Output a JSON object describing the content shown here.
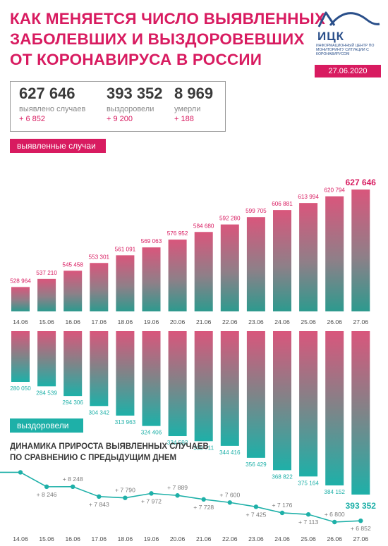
{
  "header": {
    "title_lines": [
      "КАК МЕНЯЕТСЯ ЧИСЛО ВЫЯВЛЕННЫХ",
      "ЗАБОЛЕВШИХ И ВЫЗДОРОВЕВШИХ",
      "ОТ КОРОНАВИРУСА В РОССИИ"
    ],
    "logo_text": "ИЦК",
    "logo_subtitle": "ИНФОРМАЦИОННЫЙ ЦЕНТР ПО МОНИТОРИНГУ СИТУАЦИИ С КОРОНАВИРУСОМ",
    "date": "27.06.2020"
  },
  "stats": [
    {
      "value": "627 646",
      "label": "выявлено случаев",
      "delta": "+ 6 852"
    },
    {
      "value": "393 352",
      "label": "выздоровели",
      "delta": "+ 9 200"
    },
    {
      "value": "8 969",
      "label": "умерли",
      "delta": "+ 188"
    }
  ],
  "colors": {
    "accent": "#d81b60",
    "teal": "#1eb0a8",
    "bar_top": "#d9567c",
    "bar_bottom": "#2d9a8e",
    "text": "#4a4a4a"
  },
  "chart_data": [
    {
      "type": "bar",
      "label": "выявленные случаи",
      "categories": [
        "14.06",
        "15.06",
        "16.06",
        "17.06",
        "18.06",
        "19.06",
        "20.06",
        "21.06",
        "22.06",
        "23.06",
        "24.06",
        "25.06",
        "26.06",
        "27.06"
      ],
      "values": [
        528964,
        537210,
        545458,
        553301,
        561091,
        569063,
        576952,
        584680,
        592280,
        599705,
        606881,
        613994,
        620794,
        627646
      ],
      "value_labels": [
        "528 964",
        "537 210",
        "545 458",
        "553 301",
        "561 091",
        "569 063",
        "576 952",
        "584 680",
        "592 280",
        "599 705",
        "606 881",
        "613 994",
        "620 794",
        "627 646"
      ]
    },
    {
      "type": "bar",
      "label": "выздоровели",
      "categories": [
        "14.06",
        "15.06",
        "16.06",
        "17.06",
        "18.06",
        "19.06",
        "20.06",
        "21.06",
        "22.06",
        "23.06",
        "24.06",
        "25.06",
        "26.06",
        "27.06"
      ],
      "values": [
        280050,
        284539,
        294306,
        304342,
        313963,
        324406,
        334592,
        339711,
        344416,
        356429,
        368822,
        375164,
        384152,
        393352
      ],
      "value_labels": [
        "280 050",
        "284 539",
        "294 306",
        "304 342",
        "313 963",
        "324 406",
        "334 592",
        "339 711",
        "344 416",
        "356 429",
        "368 822",
        "375 164",
        "384 152",
        "393 352"
      ]
    },
    {
      "type": "line",
      "title_lines": [
        "ДИНАМИКА ПРИРОСТА ВЫЯВЛЕННЫХ СЛУЧАЕВ",
        "ПО СРАВНЕНИЮ С ПРЕДЫДУЩИМ ДНЕМ"
      ],
      "categories": [
        "14.06",
        "15.06",
        "16.06",
        "17.06",
        "18.06",
        "19.06",
        "20.06",
        "21.06",
        "22.06",
        "23.06",
        "24.06",
        "25.06",
        "26.06",
        "27.06"
      ],
      "values": [
        8835,
        8246,
        8248,
        7843,
        7790,
        7972,
        7889,
        7728,
        7600,
        7425,
        7176,
        7113,
        6800,
        6852
      ],
      "value_labels": [
        null,
        "+ 8 246",
        "+ 8 248",
        "+ 7 843",
        "+ 7 790",
        "+ 7 972",
        "+ 7 889",
        "+ 7 728",
        "+ 7 600",
        "+ 7 425",
        "+ 7 176",
        "+ 7 113",
        "+ 6 800",
        "+ 6 852"
      ]
    }
  ]
}
